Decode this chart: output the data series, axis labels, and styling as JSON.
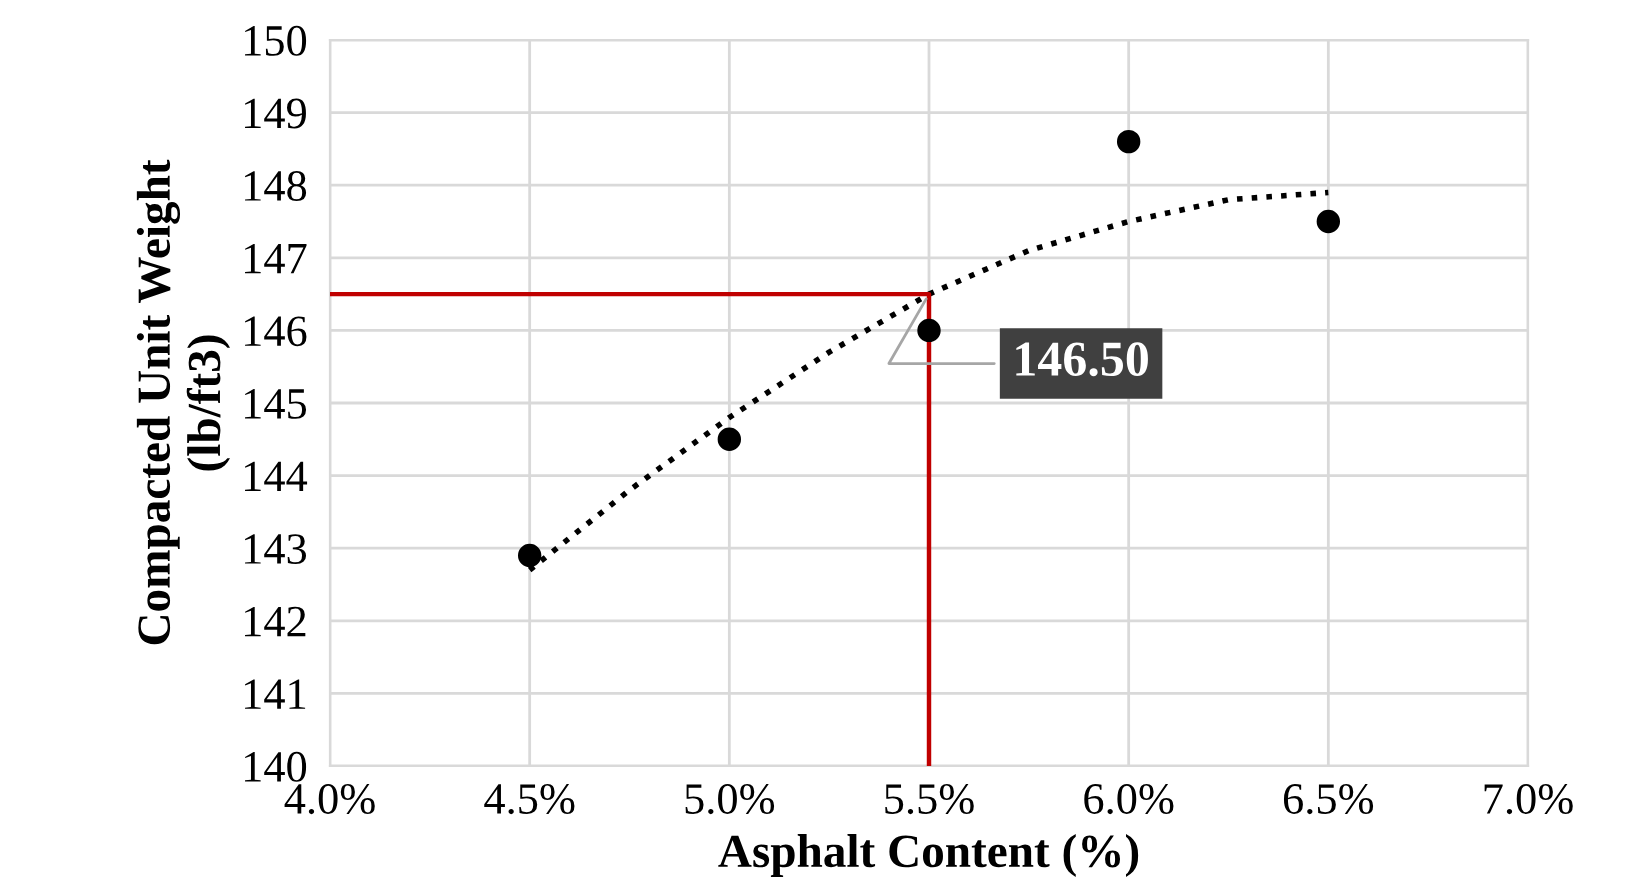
{
  "chart_data": {
    "type": "scatter",
    "xlabel": "Asphalt Content (%)",
    "ylabel": "Compacted Unit Weight\n(lb/ft3)",
    "xlim": [
      4.0,
      7.0
    ],
    "xticks": [
      {
        "value": 4.0,
        "label": "4.0%"
      },
      {
        "value": 4.5,
        "label": "4.5%"
      },
      {
        "value": 5.0,
        "label": "5.0%"
      },
      {
        "value": 5.5,
        "label": "5.5%"
      },
      {
        "value": 6.0,
        "label": "6.0%"
      },
      {
        "value": 6.5,
        "label": "6.5%"
      },
      {
        "value": 7.0,
        "label": "7.0%"
      }
    ],
    "ylim": [
      140,
      150
    ],
    "yticks": [
      140,
      141,
      142,
      143,
      144,
      145,
      146,
      147,
      148,
      149,
      150
    ],
    "grid": true,
    "legend": false,
    "series": [
      {
        "color": "#000000",
        "marker": "circle",
        "x": [
          4.5,
          5.0,
          5.5,
          6.0,
          6.5
        ],
        "values": [
          142.9,
          144.5,
          146.0,
          148.6,
          147.5
        ]
      },
      {
        "type": "line",
        "color": "#000000",
        "line_style": "dotted",
        "marker": "none",
        "x": [
          4.5,
          4.75,
          5.0,
          5.25,
          5.5,
          5.75,
          6.0,
          6.25,
          6.5
        ],
        "values": [
          142.7,
          143.8,
          144.8,
          145.7,
          146.5,
          147.1,
          147.5,
          147.8,
          147.9
        ]
      },
      {
        "type": "line",
        "color": "#c00000",
        "line_style": "solid",
        "marker": "none",
        "x": [
          4.0,
          5.5,
          5.5
        ],
        "values": [
          146.5,
          146.5,
          140
        ]
      }
    ],
    "annotations": [
      {
        "text": "146.50",
        "x": 5.5,
        "y": 146.5
      }
    ]
  }
}
